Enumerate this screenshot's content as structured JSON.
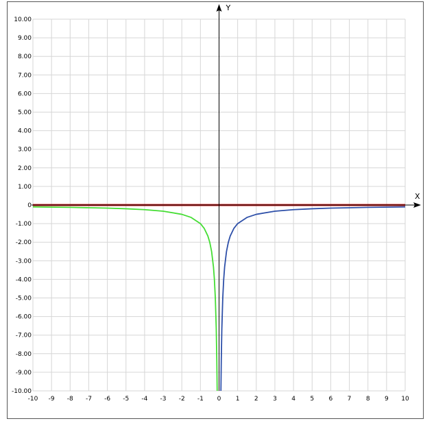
{
  "chart_data": {
    "type": "line",
    "xlabel": "X",
    "ylabel": "Y",
    "xlim": [
      -10,
      10
    ],
    "ylim": [
      -10,
      10
    ],
    "grid": true,
    "x_ticks": [
      "-10",
      "-9",
      "-8",
      "-7",
      "-6",
      "-5",
      "-4",
      "-3",
      "-2",
      "-1",
      "0",
      "1",
      "2",
      "3",
      "4",
      "5",
      "6",
      "7",
      "8",
      "9",
      "10"
    ],
    "y_ticks": [
      "10.00",
      "9.00",
      "8.00",
      "7.00",
      "6.00",
      "5.00",
      "4.00",
      "3.00",
      "2.00",
      "1.00",
      "0",
      "-1.00",
      "-2.00",
      "-3.00",
      "-4.00",
      "-5.00",
      "-6.00",
      "-7.00",
      "-8.00",
      "-9.00",
      "-10.00"
    ],
    "series": [
      {
        "color": "#44dd33",
        "x": [
          -10,
          -8,
          -6,
          -5,
          -4,
          -3,
          -2,
          -1.5,
          -1,
          -0.8,
          -0.6,
          -0.5,
          -0.4,
          -0.3,
          -0.25,
          -0.2,
          -0.15,
          -0.12,
          -0.1
        ],
        "y": [
          -0.1,
          -0.125,
          -0.167,
          -0.2,
          -0.25,
          -0.333,
          -0.5,
          -0.667,
          -1,
          -1.25,
          -1.667,
          -2,
          -2.5,
          -3.333,
          -4,
          -5,
          -6.667,
          -8.333,
          -10
        ]
      },
      {
        "color": "#2d4fa8",
        "x": [
          0.1,
          0.12,
          0.15,
          0.2,
          0.25,
          0.3,
          0.4,
          0.5,
          0.6,
          0.8,
          1,
          1.5,
          2,
          3,
          4,
          5,
          6,
          8,
          10
        ],
        "y": [
          -10,
          -8.333,
          -6.667,
          -5,
          -4,
          -3.333,
          -2.5,
          -2,
          -1.667,
          -1.25,
          -1,
          -0.667,
          -0.5,
          -0.333,
          -0.25,
          -0.2,
          -0.167,
          -0.125,
          -0.1
        ]
      },
      {
        "color": "#cc2222",
        "x": [
          -10,
          10
        ],
        "y": [
          0,
          0
        ]
      }
    ]
  }
}
